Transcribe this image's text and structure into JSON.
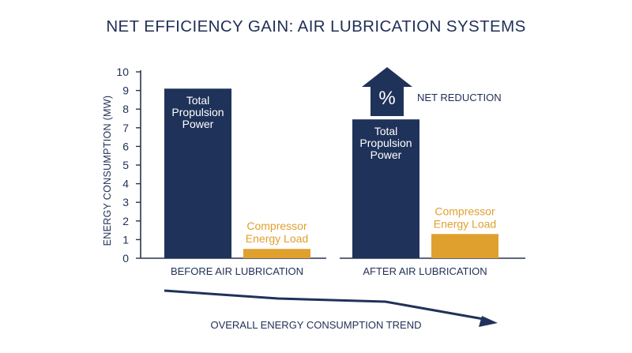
{
  "title": "NET EFFICIENCY GAIN: AIR LUBRICATION SYSTEMS",
  "colors": {
    "propulsion": "#1f3259",
    "compressor": "#e0a02e",
    "axis": "#2a3550",
    "text": "#1f2f55"
  },
  "chart_data": {
    "type": "bar",
    "title": "NET EFFICIENCY GAIN: AIR LUBRICATION SYSTEMS",
    "ylabel": "ENERGY CONSUMPTION (MW)",
    "ylim": [
      0,
      10
    ],
    "yticks": [
      "0",
      "1",
      "2",
      "3",
      "4",
      "5",
      "6",
      "7",
      "8",
      "9",
      "10"
    ],
    "grid": false,
    "categories": [
      "BEFORE AIR LUBRICATION",
      "AFTER AIR LUBRICATION"
    ],
    "series": [
      {
        "name": "Total Propulsion Power",
        "label_lines": [
          "Total",
          "Propulsion",
          "Power"
        ],
        "values": [
          9.1,
          7.45
        ],
        "color": "#1f3259"
      },
      {
        "name": "Compressor Energy Load",
        "label_lines": [
          "Compressor",
          "Energy Load"
        ],
        "values": [
          0.5,
          1.3
        ],
        "color": "#e0a02e"
      }
    ],
    "annotations": {
      "net_reduction_symbol": "%",
      "net_reduction_label": "NET REDUCTION",
      "trend_label": "OVERALL ENERGY CONSUMPTION TREND"
    }
  }
}
